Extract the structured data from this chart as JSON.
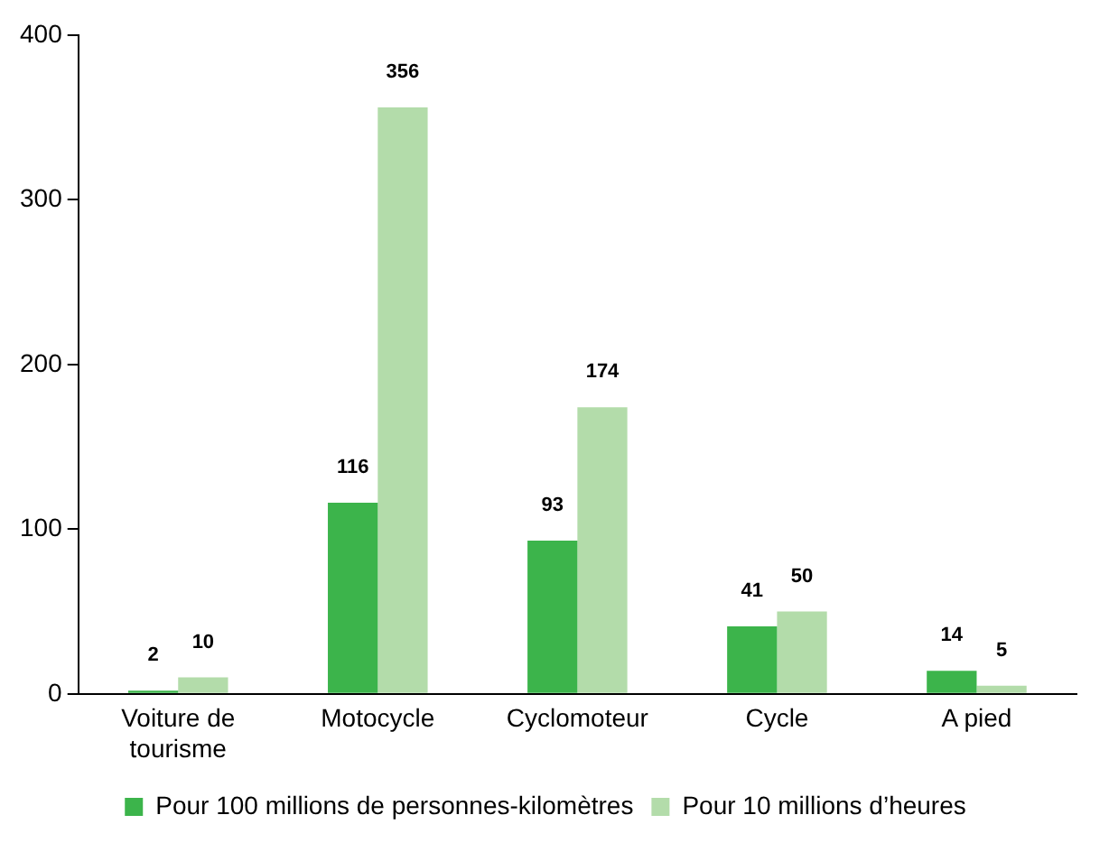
{
  "chart_data": {
    "type": "bar",
    "categories": [
      "Voiture de tourisme",
      "Motocycle",
      "Cyclomoteur",
      "Cycle",
      "A pied"
    ],
    "series": [
      {
        "name": "Pour 100 millions de personnes-kilomètres",
        "color": "#3cb44b",
        "values": [
          2,
          116,
          93,
          41,
          14
        ]
      },
      {
        "name": "Pour 10 millions d’heures",
        "color": "#b3dcaa",
        "values": [
          10,
          356,
          174,
          50,
          5
        ]
      }
    ],
    "ylim": [
      0,
      400
    ],
    "yticks": [
      0,
      100,
      200,
      300,
      400
    ],
    "grid": false,
    "legend": "bottom",
    "data_labels": true
  }
}
